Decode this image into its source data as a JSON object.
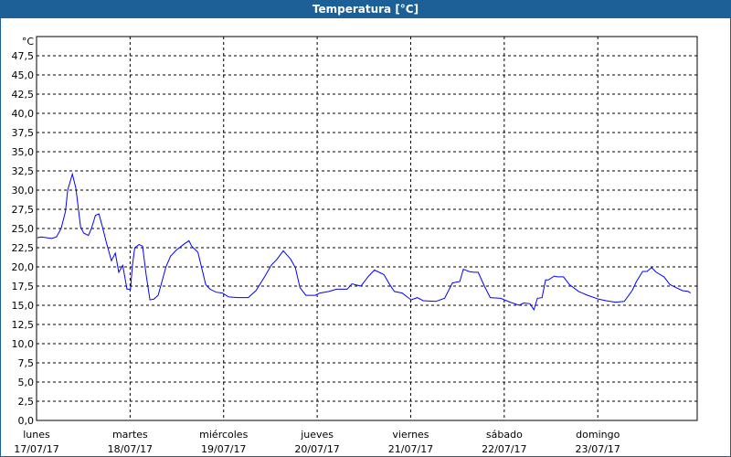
{
  "window": {
    "title": "Temperatura [°C]"
  },
  "chart_data": {
    "type": "line",
    "title": "Temperatura [°C]",
    "ylabel": "°C",
    "xlabel": "",
    "ylim": [
      0,
      50
    ],
    "xlim_hours": [
      0,
      169.5
    ],
    "y_ticks": [
      "0,0",
      "2,5",
      "5,0",
      "7,5",
      "10,0",
      "12,5",
      "15,0",
      "17,5",
      "20,0",
      "22,5",
      "25,0",
      "27,5",
      "30,0",
      "32,5",
      "35,0",
      "37,5",
      "40,0",
      "42,5",
      "45,0",
      "47,5"
    ],
    "x_ticks": [
      {
        "day": "lunes",
        "date": "17/07/17"
      },
      {
        "day": "martes",
        "date": "18/07/17"
      },
      {
        "day": "miércoles",
        "date": "19/07/17"
      },
      {
        "day": "jueves",
        "date": "20/07/17"
      },
      {
        "day": "viernes",
        "date": "21/07/17"
      },
      {
        "day": "sábado",
        "date": "22/07/17"
      },
      {
        "day": "domingo",
        "date": "23/07/17"
      }
    ],
    "grid": true,
    "line_color": "#0000ff",
    "series": [
      {
        "name": "Temperatura",
        "x_hours": [
          0.2,
          1.2,
          3.9,
          5.1,
          6.3,
          7.4,
          8.0,
          9.2,
          10.1,
          11.3,
          12.1,
          13.3,
          14.1,
          15.1,
          16.0,
          16.8,
          18.0,
          19.2,
          20.2,
          21.1,
          22.1,
          23.2,
          24.1,
          24.6,
          25.2,
          26.3,
          27.2,
          28.1,
          29.1,
          30.1,
          31.2,
          33.2,
          34.4,
          35.9,
          37.9,
          39.1,
          39.8,
          41.4,
          43.4,
          44.5,
          46.1,
          47.7,
          49.2,
          51.6,
          54.3,
          56.3,
          58.6,
          60.2,
          61.7,
          63.3,
          65.2,
          66.4,
          67.6,
          69.1,
          71.5,
          72.7,
          75.0,
          77.0,
          79.7,
          80.9,
          83.2,
          85.2,
          86.7,
          89.1,
          90.6,
          91.8,
          93.8,
          96.1,
          97.7,
          99.2,
          102.4,
          104.7,
          106.7,
          108.6,
          109.5,
          110.9,
          112.1,
          113.3,
          114.9,
          116.4,
          119.1,
          121.5,
          123.8,
          125.0,
          126.6,
          127.6,
          128.5,
          129.7,
          130.6,
          131.3,
          132.8,
          133.6,
          135.2,
          136.7,
          139.1,
          141.4,
          144.2,
          146.1,
          148.5,
          150.8,
          152.8,
          153.9,
          155.5,
          156.6,
          157.8,
          159.0,
          161.0,
          162.5,
          164.1,
          165.7,
          167.2,
          167.8
        ],
        "values": [
          23.8,
          23.9,
          23.7,
          23.9,
          25.0,
          27.2,
          30.0,
          32.1,
          30.2,
          25.2,
          24.4,
          24.1,
          25.0,
          26.7,
          26.9,
          25.4,
          23.0,
          20.8,
          21.8,
          19.3,
          20.2,
          17.1,
          17.1,
          20.2,
          22.5,
          22.9,
          22.7,
          19.0,
          15.7,
          15.8,
          16.3,
          20.0,
          21.4,
          22.2,
          23.0,
          23.4,
          22.7,
          21.9,
          17.7,
          17.1,
          16.7,
          16.6,
          16.1,
          16.0,
          16.0,
          16.9,
          18.8,
          20.2,
          21.0,
          22.1,
          21.0,
          19.9,
          17.3,
          16.3,
          16.3,
          16.6,
          16.8,
          17.1,
          17.1,
          17.8,
          17.5,
          18.8,
          19.6,
          19.0,
          17.7,
          16.8,
          16.6,
          15.7,
          16.0,
          15.6,
          15.5,
          15.9,
          17.9,
          18.1,
          19.7,
          19.4,
          19.3,
          19.3,
          17.5,
          16.0,
          15.9,
          15.4,
          15.0,
          15.3,
          15.2,
          14.4,
          15.9,
          16.0,
          18.3,
          18.3,
          18.8,
          18.7,
          18.7,
          17.7,
          16.8,
          16.3,
          15.8,
          15.6,
          15.4,
          15.5,
          16.9,
          18.1,
          19.4,
          19.4,
          19.9,
          19.3,
          18.7,
          17.7,
          17.3,
          16.9,
          16.8,
          16.6
        ]
      }
    ]
  }
}
